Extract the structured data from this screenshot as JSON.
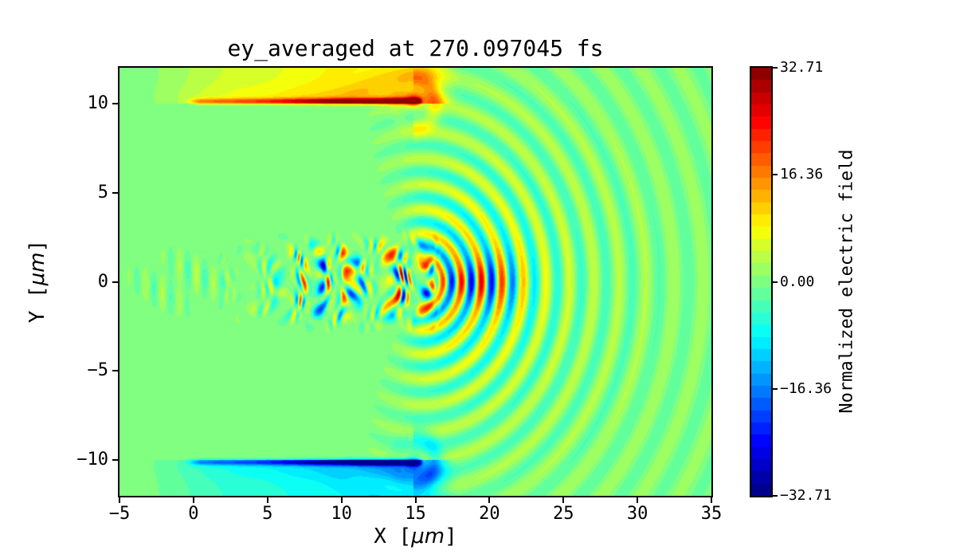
{
  "chart_data": {
    "type": "heatmap",
    "title": "ey_averaged at 270.097045 fs",
    "time_fs": 270.097045,
    "xlabel_parts": {
      "pre": "X [",
      "mu": "μm",
      "post": "]"
    },
    "ylabel_parts": {
      "pre": "Y [",
      "mu": "μm",
      "post": "]"
    },
    "xlim": [
      -5,
      35
    ],
    "ylim": [
      -12,
      12
    ],
    "x_ticks": [
      -5,
      0,
      5,
      10,
      15,
      20,
      25,
      30,
      35
    ],
    "x_tick_labels": [
      "−5",
      "0",
      "5",
      "10",
      "15",
      "20",
      "25",
      "30",
      "35"
    ],
    "y_ticks": [
      10,
      5,
      0,
      -5,
      -10
    ],
    "y_tick_labels": [
      "10",
      "5",
      "0",
      "−5",
      "−10"
    ],
    "grid": false,
    "colorbar": {
      "label": "Normalized electric field",
      "vmin": -32.71,
      "vmax": 32.71,
      "ticks": [
        32.71,
        16.36,
        0,
        -16.36,
        -32.71
      ],
      "tick_labels": [
        "32.71",
        "16.36",
        "0.00",
        "−16.36",
        "−32.71"
      ],
      "levels": 35,
      "colormap": "jet",
      "background_value": 0
    },
    "field_model": {
      "vmax": 32.71,
      "slab": {
        "y_edge": 10,
        "x_start": 0,
        "x_end": 15.2,
        "line_base": 12,
        "line_peak": 33,
        "line_sigma": 0.17,
        "halo_amp": 13,
        "hotspot_x": 14.85,
        "hotspot_amp": 9,
        "ring_amp": 7,
        "ring_radius": 1.35
      },
      "pulse": {
        "x_start": 1.2,
        "x_full": 3.0,
        "x_end": 16.9,
        "y_width": 2.15,
        "amp": 31,
        "wavelength": 1.05
      },
      "ripples": {
        "cx": 15.4,
        "cy": 0.0,
        "wavelength": 1.22,
        "amp_near": 16,
        "decay_near": 4.4,
        "amp_far": 5,
        "decay_far": 20,
        "axis_boost": 1.3,
        "boost_r": 4.7
      },
      "left_ripples": {
        "amp": 5.5,
        "wavelength": 1.15,
        "y_width": 1.5,
        "x_center": -0.8,
        "x_width": 3.0
      }
    }
  }
}
